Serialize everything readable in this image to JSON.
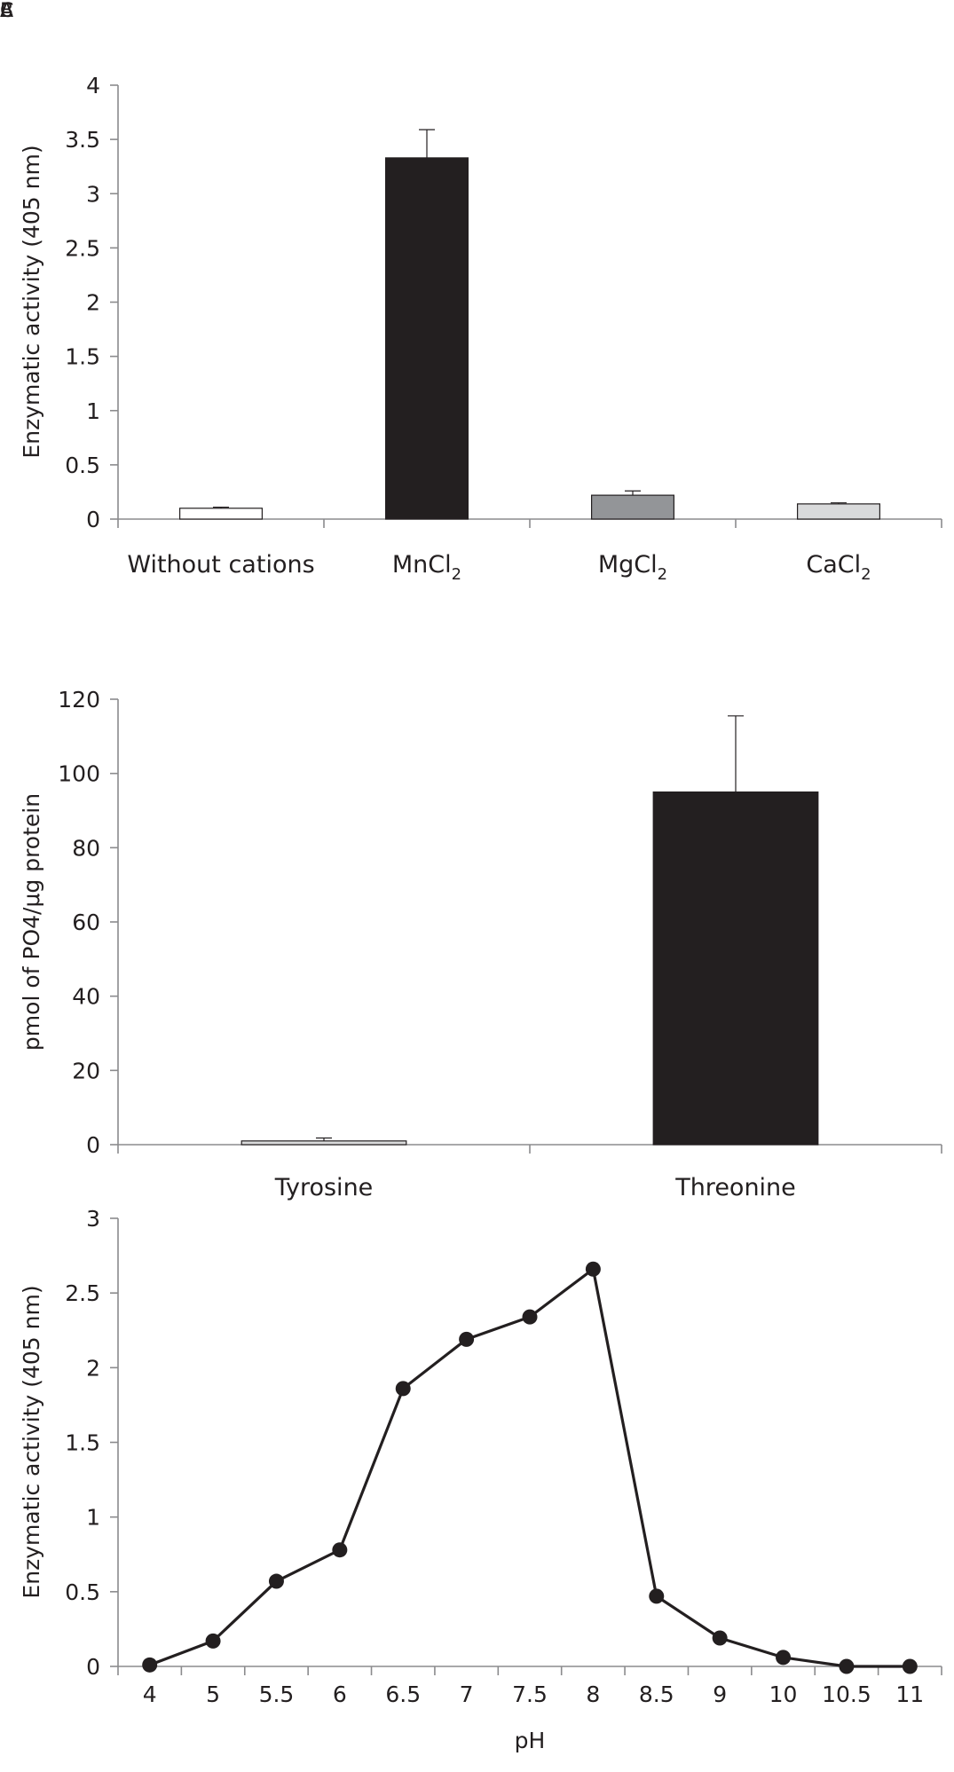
{
  "panels": {
    "a": "A",
    "b": "B",
    "c": "C"
  },
  "chart_data": [
    {
      "type": "bar",
      "panel": "A",
      "categories": [
        {
          "main": "Without cations",
          "sub": ""
        },
        {
          "main": "MnCl",
          "sub": "2"
        },
        {
          "main": "MgCl",
          "sub": "2"
        },
        {
          "main": "CaCl",
          "sub": "2"
        }
      ],
      "values": [
        0.1,
        3.33,
        0.22,
        0.14
      ],
      "errors": [
        0.01,
        0.26,
        0.04,
        0.01
      ],
      "colors": [
        "#ffffff",
        "#231f20",
        "#939598",
        "#d9dadb"
      ],
      "ylabel": "Enzymatic activity (405 nm)",
      "xlabel": "",
      "ylim": [
        0,
        4
      ],
      "yticks": [
        "0",
        "0.5",
        "1",
        "1.5",
        "2",
        "2.5",
        "3",
        "3.5",
        "4"
      ],
      "grid": false
    },
    {
      "type": "bar",
      "panel": "B",
      "categories": [
        {
          "main": "Tyrosine",
          "sub": ""
        },
        {
          "main": "Threonine",
          "sub": ""
        }
      ],
      "values": [
        1,
        95
      ],
      "errors": [
        0.8,
        20.5
      ],
      "colors": [
        "#d9dadb",
        "#231f20"
      ],
      "ylabel": "pmol of PO4/μg protein",
      "xlabel": "",
      "ylim": [
        0,
        120
      ],
      "yticks": [
        "0",
        "20",
        "40",
        "60",
        "80",
        "100",
        "120"
      ],
      "grid": false
    },
    {
      "type": "line",
      "panel": "C",
      "x": [
        "4",
        "5",
        "5.5",
        "6",
        "6.5",
        "7",
        "7.5",
        "8",
        "8.5",
        "9",
        "10",
        "10.5",
        "11"
      ],
      "values": [
        0.01,
        0.17,
        0.57,
        0.78,
        1.86,
        2.19,
        2.34,
        2.66,
        0.47,
        0.19,
        0.06,
        0.0,
        0.0
      ],
      "ylabel": "Enzymatic activity (405 nm)",
      "xlabel": "pH",
      "ylim": [
        0,
        3
      ],
      "yticks": [
        "0",
        "0.5",
        "1",
        "1.5",
        "2",
        "2.5",
        "3"
      ],
      "color": "#231f20",
      "grid": false
    }
  ]
}
